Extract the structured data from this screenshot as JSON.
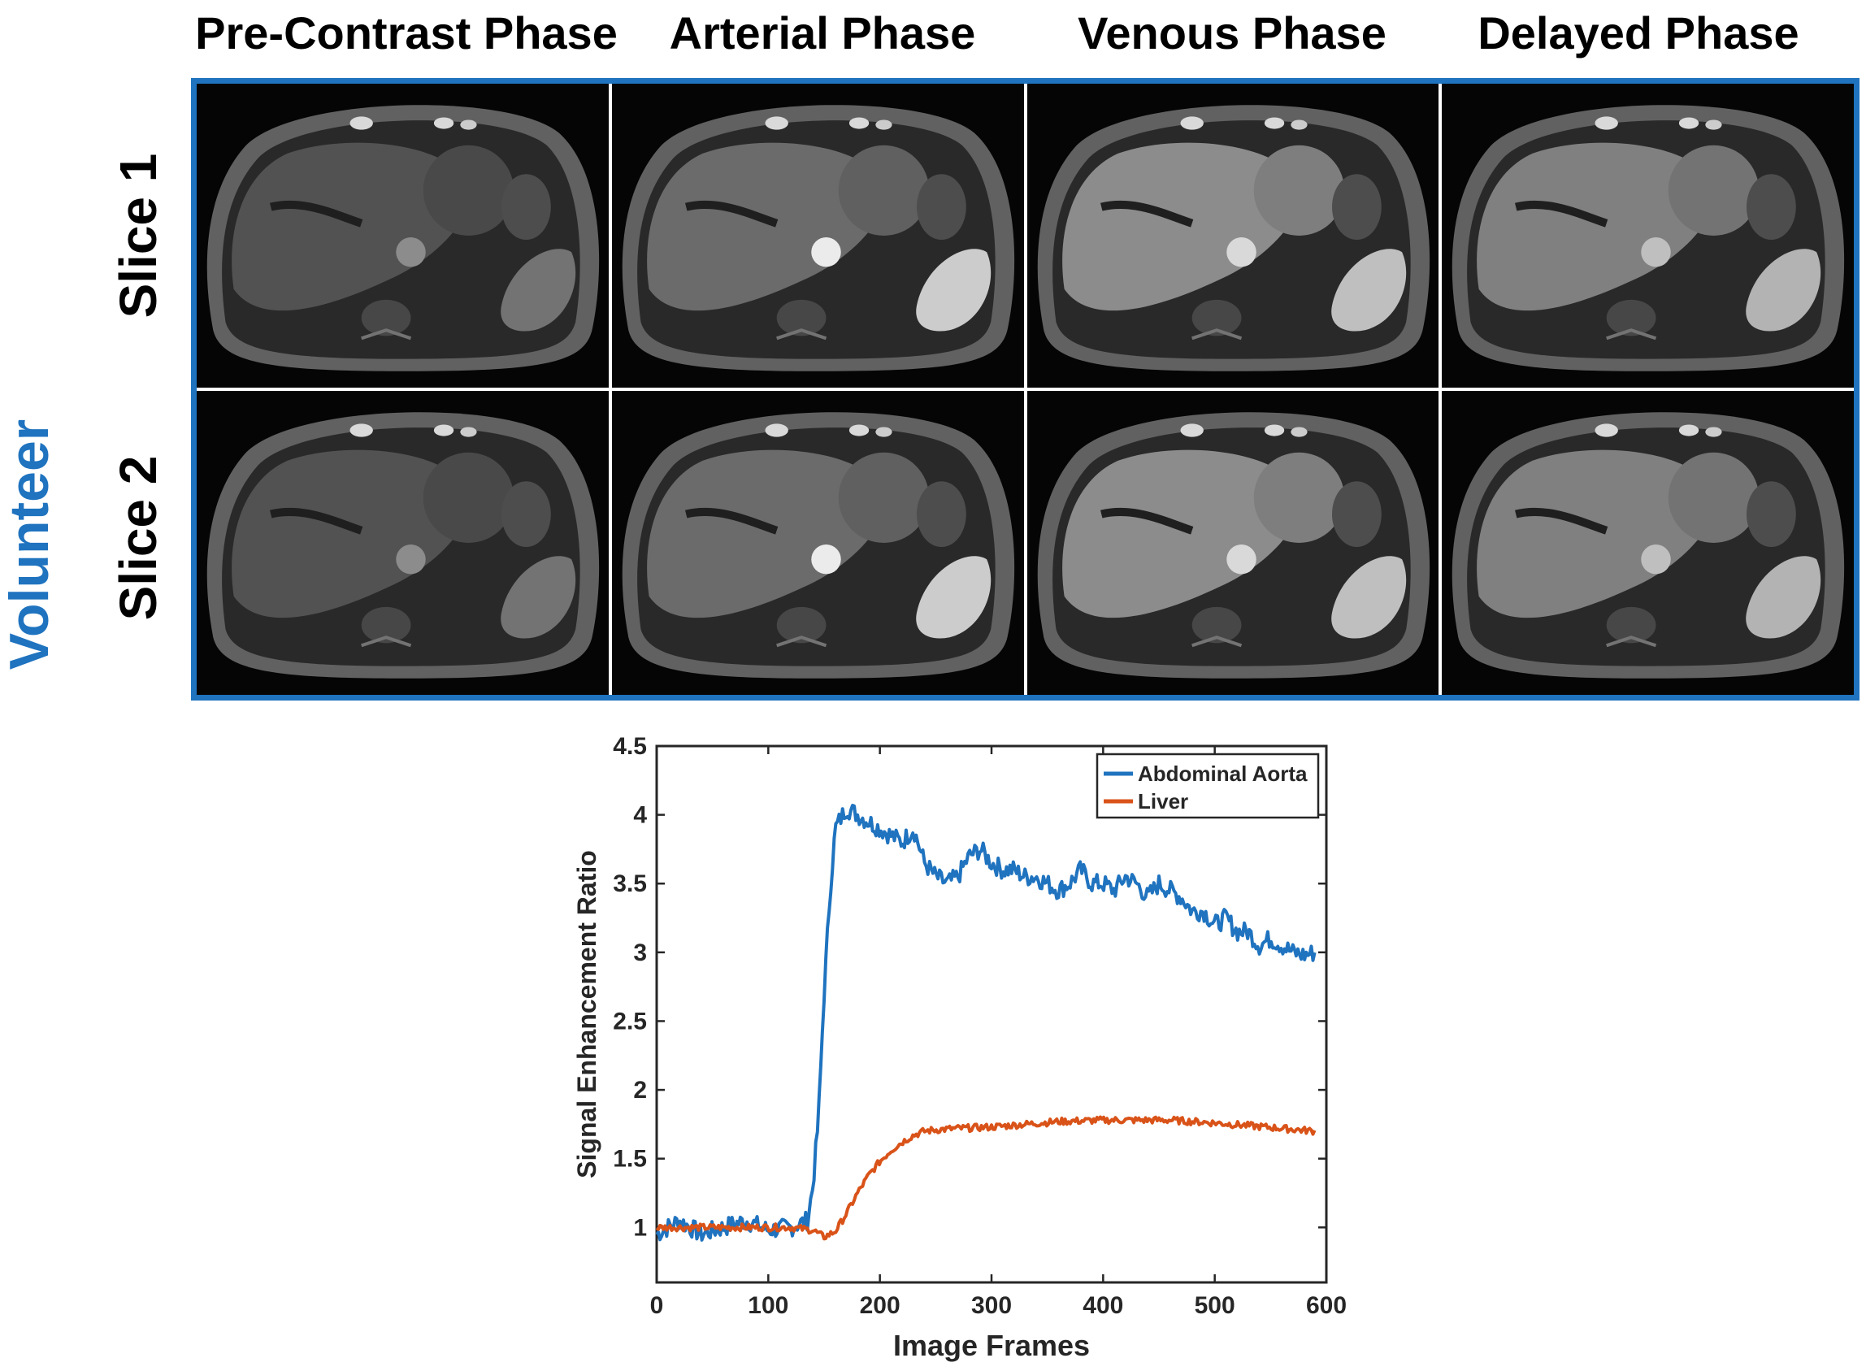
{
  "figure": {
    "phases": [
      "Pre-Contrast Phase",
      "Arterial Phase",
      "Venous Phase",
      "Delayed Phase"
    ],
    "row_group_label": "Volunteer",
    "rows": [
      "Slice 1",
      "Slice 2"
    ],
    "colors": {
      "accent": "#1f73bf",
      "aorta": "#1f73bf",
      "liver": "#d95319"
    }
  },
  "chart_data": {
    "type": "line",
    "title": "",
    "xlabel": "Image Frames",
    "ylabel": "Signal Enhancement Ratio",
    "xlim": [
      0,
      600
    ],
    "ylim": [
      0.6,
      4.5
    ],
    "xticks": [
      0,
      100,
      200,
      300,
      400,
      500,
      600
    ],
    "yticks": [
      1,
      1.5,
      2,
      2.5,
      3,
      3.5,
      4,
      4.5
    ],
    "ytick_labels": [
      "1",
      "1.5",
      "2",
      "2.5",
      "3",
      "3.5",
      "4",
      "4.5"
    ],
    "legend_position": "top-right",
    "series": [
      {
        "name": "Abdominal Aorta",
        "color": "#1f73bf",
        "x": [
          0,
          20,
          40,
          60,
          80,
          100,
          120,
          135,
          140,
          145,
          150,
          155,
          160,
          170,
          180,
          190,
          200,
          210,
          220,
          230,
          240,
          250,
          260,
          270,
          280,
          290,
          300,
          310,
          320,
          330,
          340,
          350,
          360,
          370,
          380,
          390,
          400,
          410,
          420,
          430,
          440,
          450,
          460,
          470,
          480,
          490,
          500,
          510,
          520,
          530,
          540,
          550,
          560,
          570,
          580,
          590
        ],
        "y": [
          0.95,
          1.05,
          0.95,
          1.0,
          1.05,
          0.98,
          1.0,
          1.05,
          1.3,
          1.8,
          2.7,
          3.4,
          3.9,
          4.05,
          4.0,
          3.95,
          3.9,
          3.85,
          3.8,
          3.9,
          3.65,
          3.55,
          3.5,
          3.55,
          3.7,
          3.75,
          3.65,
          3.6,
          3.6,
          3.55,
          3.55,
          3.5,
          3.45,
          3.5,
          3.6,
          3.5,
          3.5,
          3.45,
          3.55,
          3.5,
          3.4,
          3.5,
          3.45,
          3.4,
          3.3,
          3.3,
          3.2,
          3.25,
          3.15,
          3.15,
          3.05,
          3.1,
          3.05,
          3.0,
          2.98,
          3.0
        ]
      },
      {
        "name": "Liver",
        "color": "#d95319",
        "x": [
          0,
          20,
          40,
          60,
          80,
          100,
          120,
          140,
          150,
          160,
          170,
          180,
          190,
          200,
          210,
          220,
          230,
          240,
          250,
          270,
          300,
          330,
          360,
          400,
          430,
          460,
          500,
          530,
          560,
          590
        ],
        "y": [
          1.0,
          1.0,
          1.0,
          1.0,
          1.0,
          1.0,
          1.0,
          0.98,
          0.93,
          0.97,
          1.1,
          1.25,
          1.38,
          1.48,
          1.56,
          1.62,
          1.67,
          1.7,
          1.71,
          1.72,
          1.73,
          1.75,
          1.77,
          1.78,
          1.78,
          1.78,
          1.76,
          1.74,
          1.72,
          1.7
        ]
      }
    ]
  }
}
